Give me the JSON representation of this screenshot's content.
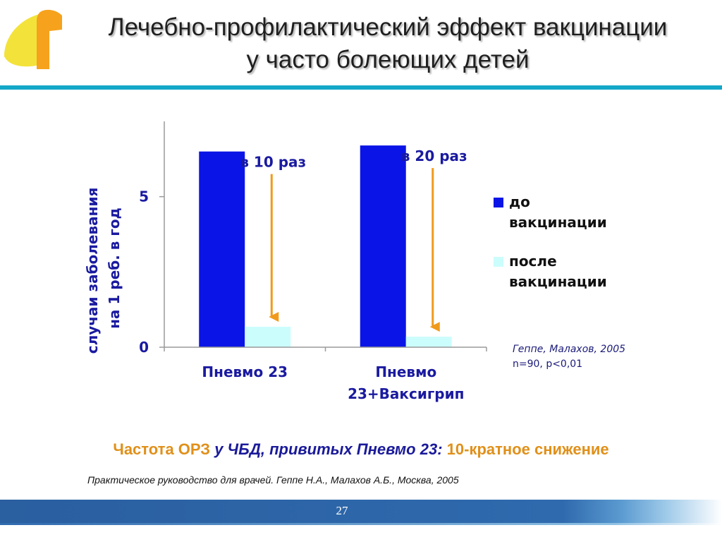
{
  "slide": {
    "title_line1": "Лечебно-профилактический эффект вакцинации",
    "title_line2": "у часто болеющих детей",
    "page_number": "27",
    "logo_icon": "yellow-orange-corner-logo",
    "colors": {
      "accent_rule": "#14a7c9",
      "orange": "#e0901a",
      "navy": "#1a1a9a",
      "footer_blue": "#2f6aae"
    }
  },
  "chart_data": {
    "type": "bar",
    "ylabel_line1": "случаи заболевания",
    "ylabel_line2": "на 1 реб. в год",
    "yticks": [
      "0",
      "5"
    ],
    "ylim": [
      0,
      7.5
    ],
    "categories": [
      {
        "line1": "Пневмо 23",
        "line2": ""
      },
      {
        "line1": "Пневмо",
        "line2": "23+Ваксигрип"
      }
    ],
    "series": [
      {
        "name": "до вакцинации",
        "name_line1": "до",
        "name_line2": "вакцинации",
        "color": "#0a14e6",
        "values": [
          6.5,
          6.7
        ]
      },
      {
        "name": "после вакцинации",
        "name_line1": "после",
        "name_line2": "вакцинации",
        "color": "#ccfdfd",
        "values": [
          0.68,
          0.35
        ]
      }
    ],
    "annotations": [
      {
        "text": "в 10 раз",
        "category_index": 0
      },
      {
        "text": "в 20 раз",
        "category_index": 1
      }
    ],
    "legend_position": "right",
    "grid": false
  },
  "source": {
    "line1": "Геппе, Малахов, 2005",
    "line2": "n=90, p<0,01"
  },
  "summary": {
    "part1": "Частота ОРЗ ",
    "part2": "у ЧБД, привитых Пневмо 23:",
    "part3": " 10-кратное снижение"
  },
  "reference": "Практическое руководство для врачей. Геппе Н.А., Малахов А.Б., Москва, 2005"
}
